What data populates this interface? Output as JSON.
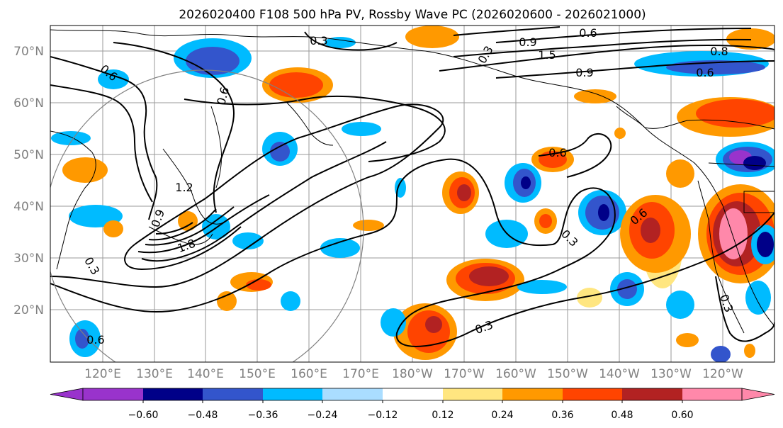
{
  "title": "2026020400 F108 500 hPa PV, Rossby Wave PC (2026020600 - 2026021000)",
  "map": {
    "lat_labels": [
      "70°N",
      "60°N",
      "50°N",
      "40°N",
      "30°N",
      "20°N"
    ],
    "lon_labels": [
      "120°E",
      "130°E",
      "140°E",
      "150°E",
      "160°E",
      "170°E",
      "180°W",
      "170°W",
      "160°W",
      "150°W",
      "140°W",
      "130°W",
      "120°W"
    ],
    "contour_labels": [
      "0.3",
      "0.6",
      "1.5",
      "0.9",
      "0.6",
      "1.2",
      "0.9",
      "1.8",
      "0.6",
      "0.6",
      "0.3",
      "0.3",
      "0.3",
      "0.6",
      "0.3",
      "0.9",
      "0.6",
      "0.8",
      "0.6",
      "0.3"
    ]
  },
  "colorbar": {
    "colors": [
      "#9933cc",
      "#000088",
      "#3355cc",
      "#00bbff",
      "#aaddff",
      "#ffffff",
      "#ffe680",
      "#ff9900",
      "#ff4400",
      "#b22222",
      "#ff88aa"
    ],
    "tick_labels": [
      "−0.60",
      "−0.48",
      "−0.36",
      "−0.24",
      "−0.12",
      "0.12",
      "0.24",
      "0.36",
      "0.48",
      "0.60"
    ]
  }
}
